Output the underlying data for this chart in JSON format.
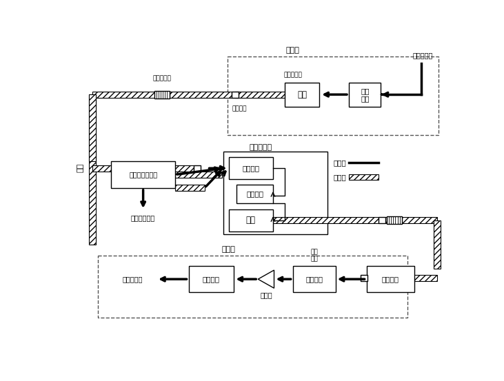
{
  "bg_color": "#ffffff",
  "s1_title": "发端机",
  "s1_elec_input": "电信号输入",
  "s1_modulator": "电调\n制器",
  "s1_lightsource": "光源",
  "s1_connector": "光连接器",
  "s1_coupler_label": "光纤轮合盘",
  "s1_fiber_pigtail": "光纤尾缴线",
  "s2_regen_label": "再生中继器",
  "s2_photodet": "光检波器",
  "s2_elec_amp": "电放大器",
  "s2_lightsource2": "光源",
  "s2_coupler2_label": "光纤合并分展器",
  "s2_supp_equip": "监控辅助设备",
  "s3_title": "收端机",
  "s3_lightamp": "光放大器",
  "s3_photodet2": "光检波器",
  "s3_amp2": "放大器",
  "s3_demod": "电解调器",
  "s3_elec_output": "电信号输出",
  "s3_opt_filter": "光滤\n波器",
  "fiber_label": "光缆",
  "legend_elec": "电信号",
  "legend_opt": "光信号"
}
